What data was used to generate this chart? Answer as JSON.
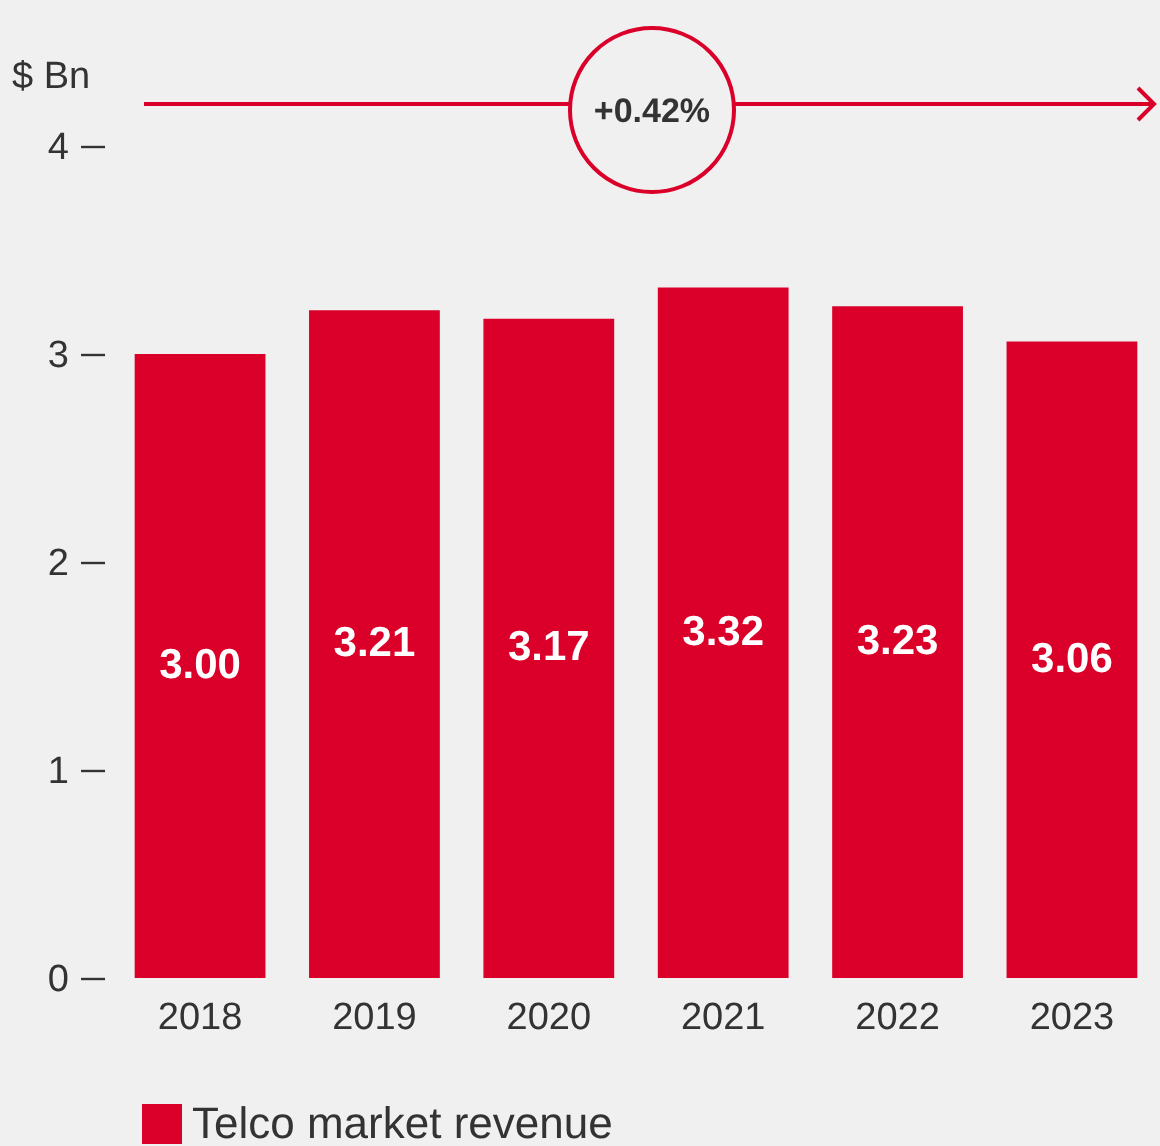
{
  "chart_data": {
    "type": "bar",
    "ylabel": "$ Bn",
    "categories": [
      "2018",
      "2019",
      "2020",
      "2021",
      "2022",
      "2023"
    ],
    "series": [
      {
        "name": "Telco market revenue",
        "color": "#da0029",
        "values": [
          3.0,
          3.21,
          3.17,
          3.32,
          3.23,
          3.06
        ],
        "value_labels": [
          "3.00",
          "3.21",
          "3.17",
          "3.32",
          "3.23",
          "3.06"
        ]
      }
    ],
    "ylim": [
      0,
      4
    ],
    "yticks": [
      0,
      1,
      2,
      3,
      4
    ],
    "legend": "bottom left",
    "grid": false,
    "annotations": [
      "+0.42%"
    ]
  }
}
